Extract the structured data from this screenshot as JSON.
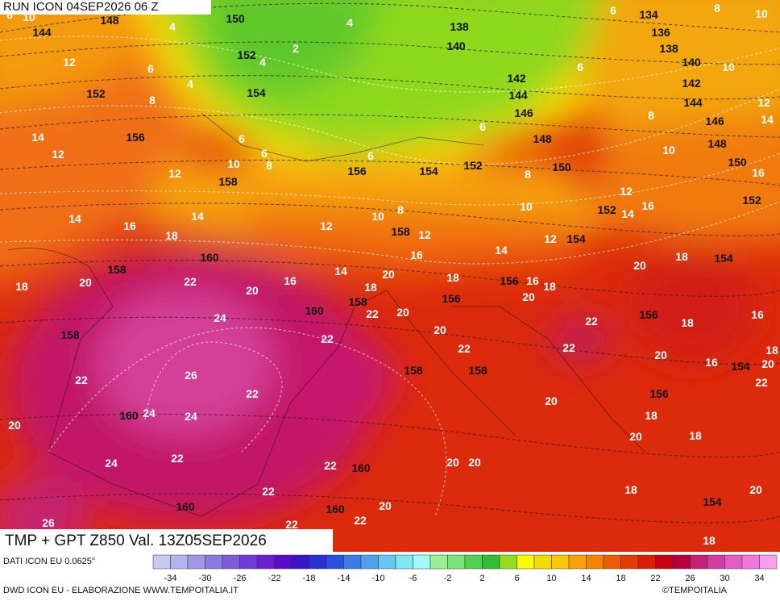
{
  "header": {
    "run": "RUN ICON 04SEP2026 06 Z"
  },
  "map": {
    "height_labels": [
      144,
      148,
      150,
      138,
      134,
      136,
      140,
      138,
      140,
      152,
      142,
      142,
      152,
      154,
      144,
      144,
      146,
      146,
      156,
      148,
      148,
      150,
      156,
      154,
      152,
      150,
      158,
      152,
      152,
      158,
      154,
      160,
      154,
      158,
      156,
      160,
      156,
      158,
      156,
      158,
      158,
      158,
      154,
      156,
      160,
      160,
      160,
      160,
      154
    ],
    "temperature_labels": [
      10,
      8,
      4,
      4,
      6,
      8,
      10,
      2,
      4,
      12,
      6,
      6,
      10,
      4,
      8,
      12,
      8,
      14,
      6,
      14,
      6,
      12,
      6,
      10,
      10,
      6,
      8,
      12,
      8,
      16,
      12,
      16,
      10,
      14,
      14,
      8,
      10,
      14,
      12,
      16,
      18,
      12,
      12,
      14,
      16,
      18,
      20,
      14,
      20,
      18,
      16,
      18,
      16,
      18,
      20,
      22,
      18,
      20,
      20,
      22,
      20,
      24,
      22,
      18,
      16,
      20,
      22,
      22,
      22,
      18,
      20,
      16,
      20,
      26,
      22,
      22,
      22,
      20,
      24,
      24,
      18,
      20,
      18,
      20,
      22,
      24,
      22,
      20,
      20,
      18,
      20,
      22,
      20,
      26,
      22,
      22,
      18
    ]
  },
  "footer": {
    "title": "TMP + GPT Z850 Val. 13Z05SEP2026",
    "source": "DATI ICON EU 0.0625°",
    "credit": "DWD ICON EU - ELABORAZIONE WWW.TEMPOITALIA.IT",
    "copyright": "©TEMPOITALIA"
  },
  "colorbar": {
    "ticks": [
      -34,
      -30,
      -26,
      -22,
      -18,
      -14,
      -10,
      -6,
      -2,
      2,
      6,
      10,
      14,
      18,
      22,
      26,
      30,
      34
    ]
  }
}
